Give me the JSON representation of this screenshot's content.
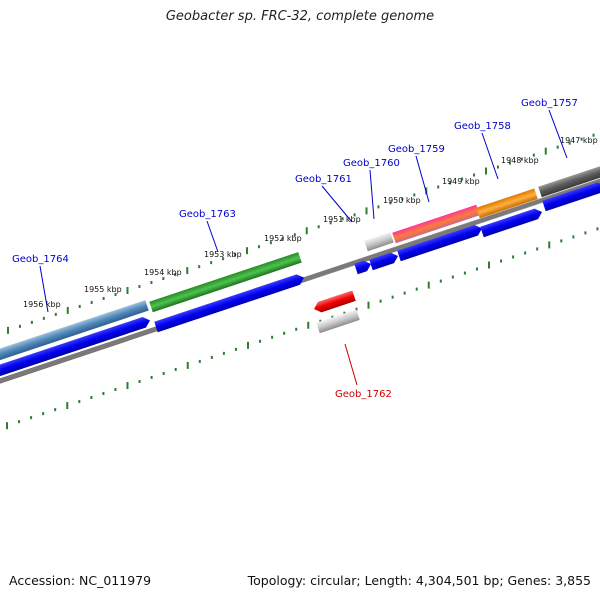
{
  "title": "Geobacter sp. FRC-32, complete genome",
  "footer": {
    "accession": "Accession: NC_011979",
    "topology": "Topology: circular; Length: 4,304,501 bp; Genes: 3,855"
  },
  "colors": {
    "backbone": "#808080",
    "tick": "#2e7d32",
    "gene_label_forward": "#0000cc",
    "gene_label_reverse": "#cc0000",
    "cds_blue": "#0000ee"
  },
  "tick_labels": [
    "1956 kbp",
    "1955 kbp",
    "1954 kbp",
    "1953 kbp",
    "1952 kbp",
    "1951 kbp",
    "1950 kbp",
    "1949 kbp",
    "1948 kbp",
    "1947 kbp"
  ],
  "gene_labels": [
    {
      "name": "Geob_1764",
      "strand": "forward"
    },
    {
      "name": "Geob_1763",
      "strand": "forward"
    },
    {
      "name": "Geob_1761",
      "strand": "forward"
    },
    {
      "name": "Geob_1760",
      "strand": "forward"
    },
    {
      "name": "Geob_1759",
      "strand": "forward"
    },
    {
      "name": "Geob_1758",
      "strand": "forward"
    },
    {
      "name": "Geob_1757",
      "strand": "forward"
    },
    {
      "name": "Geob_1762",
      "strand": "reverse"
    }
  ]
}
